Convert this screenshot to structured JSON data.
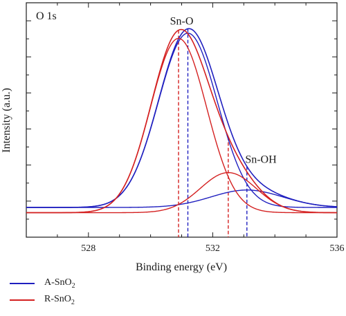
{
  "chart_data": {
    "type": "line",
    "title": "",
    "panel_label": "O 1s",
    "xlabel": "Binding energy (eV)",
    "ylabel": "Intensity (a.u.)",
    "xlim": [
      526,
      536
    ],
    "xticks": [
      528,
      532,
      536
    ],
    "y_tick_labels_shown": false,
    "grid": false,
    "legend_position": "below-left",
    "series": [
      {
        "name": "A-SnO2",
        "name_parts": [
          "A-SnO",
          "2"
        ],
        "color": "#1f1fbf",
        "peaks": [
          {
            "label": "Sn-O",
            "center_ev": 531.2,
            "sigma_ev": 0.95,
            "height": 1.0
          },
          {
            "label": "Sn-OH",
            "center_ev": 533.1,
            "sigma_ev": 1.15,
            "height": 0.1
          }
        ],
        "baseline": 0.0,
        "marker_lines_ev": [
          531.2,
          533.1
        ]
      },
      {
        "name": "R-SnO2",
        "name_parts": [
          "R-SnO",
          "2"
        ],
        "color": "#d42020",
        "peaks": [
          {
            "label": "Sn-O",
            "center_ev": 530.9,
            "sigma_ev": 0.9,
            "height": 1.0
          },
          {
            "label": "Sn-OH",
            "center_ev": 532.5,
            "sigma_ev": 0.9,
            "height": 0.23
          }
        ],
        "baseline": -0.03,
        "marker_lines_ev": [
          530.9,
          532.5
        ]
      }
    ],
    "annotations": [
      {
        "text": "Sn-O",
        "x_ev": 531.0,
        "y_rel": 1.05
      },
      {
        "text": "Sn-OH",
        "x_ev": 533.55,
        "y_rel": 0.255
      }
    ]
  }
}
